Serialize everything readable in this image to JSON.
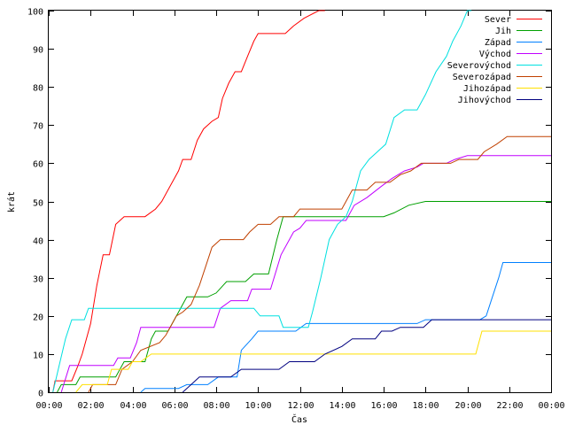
{
  "chart_data": {
    "type": "line",
    "xlabel": "Čas",
    "ylabel": "krát",
    "xlim": [
      0,
      24
    ],
    "ylim": [
      0,
      100
    ],
    "x_ticks": [
      {
        "value": 0,
        "label": "00:00"
      },
      {
        "value": 2,
        "label": "02:00"
      },
      {
        "value": 4,
        "label": "04:00"
      },
      {
        "value": 6,
        "label": "06:00"
      },
      {
        "value": 8,
        "label": "08:00"
      },
      {
        "value": 10,
        "label": "10:00"
      },
      {
        "value": 12,
        "label": "12:00"
      },
      {
        "value": 14,
        "label": "14:00"
      },
      {
        "value": 16,
        "label": "16:00"
      },
      {
        "value": 18,
        "label": "18:00"
      },
      {
        "value": 20,
        "label": "20:00"
      },
      {
        "value": 22,
        "label": "22:00"
      },
      {
        "value": 24,
        "label": "00:00"
      }
    ],
    "y_ticks": [
      0,
      10,
      20,
      30,
      40,
      50,
      60,
      70,
      80,
      90,
      100
    ],
    "legend_position": "top-right",
    "grid": false,
    "series": [
      {
        "name": "Sever",
        "color": "#ff0000",
        "points": [
          [
            0.2,
            0
          ],
          [
            0.3,
            3
          ],
          [
            1.1,
            3
          ],
          [
            1.4,
            7
          ],
          [
            1.6,
            10
          ],
          [
            2.0,
            18
          ],
          [
            2.3,
            28
          ],
          [
            2.6,
            36
          ],
          [
            2.9,
            36
          ],
          [
            3.2,
            44
          ],
          [
            3.6,
            46
          ],
          [
            4.6,
            46
          ],
          [
            5.1,
            48
          ],
          [
            5.4,
            50
          ],
          [
            5.8,
            54
          ],
          [
            6.2,
            58
          ],
          [
            6.4,
            61
          ],
          [
            6.8,
            61
          ],
          [
            7.1,
            66
          ],
          [
            7.4,
            69
          ],
          [
            7.8,
            71
          ],
          [
            8.1,
            72
          ],
          [
            8.3,
            77
          ],
          [
            8.6,
            81
          ],
          [
            8.9,
            84
          ],
          [
            9.2,
            84
          ],
          [
            9.5,
            88
          ],
          [
            9.8,
            92
          ],
          [
            10.0,
            94
          ],
          [
            11.3,
            94
          ],
          [
            11.7,
            96
          ],
          [
            12.2,
            98
          ],
          [
            12.9,
            100
          ],
          [
            13.2,
            100
          ]
        ]
      },
      {
        "name": "Jih",
        "color": "#00a000",
        "points": [
          [
            0.4,
            0
          ],
          [
            0.6,
            2
          ],
          [
            1.3,
            2
          ],
          [
            1.5,
            4
          ],
          [
            3.2,
            4
          ],
          [
            3.6,
            8
          ],
          [
            4.6,
            8
          ],
          [
            4.9,
            14
          ],
          [
            5.1,
            16
          ],
          [
            5.7,
            16
          ],
          [
            6.2,
            21
          ],
          [
            6.6,
            25
          ],
          [
            7.6,
            25
          ],
          [
            8.0,
            26
          ],
          [
            8.5,
            29
          ],
          [
            9.4,
            29
          ],
          [
            9.8,
            31
          ],
          [
            10.5,
            31
          ],
          [
            10.9,
            40
          ],
          [
            11.2,
            46
          ],
          [
            16.0,
            46
          ],
          [
            16.5,
            47
          ],
          [
            17.2,
            49
          ],
          [
            18.0,
            50
          ],
          [
            24.0,
            50
          ]
        ]
      },
      {
        "name": "Západ",
        "color": "#0080ff",
        "points": [
          [
            4.4,
            0
          ],
          [
            4.6,
            1
          ],
          [
            6.2,
            1
          ],
          [
            6.6,
            2
          ],
          [
            7.6,
            2
          ],
          [
            8.1,
            4
          ],
          [
            9.0,
            4
          ],
          [
            9.2,
            11
          ],
          [
            9.7,
            14
          ],
          [
            10.0,
            16
          ],
          [
            11.8,
            16
          ],
          [
            12.3,
            18
          ],
          [
            17.6,
            18
          ],
          [
            18.0,
            19
          ],
          [
            20.6,
            19
          ],
          [
            20.9,
            20
          ],
          [
            21.2,
            25
          ],
          [
            21.5,
            30
          ],
          [
            21.7,
            34
          ],
          [
            24.0,
            34
          ]
        ]
      },
      {
        "name": "Východ",
        "color": "#c000ff",
        "points": [
          [
            0.6,
            0
          ],
          [
            1.0,
            7
          ],
          [
            3.1,
            7
          ],
          [
            3.3,
            9
          ],
          [
            3.9,
            9
          ],
          [
            4.2,
            13
          ],
          [
            4.4,
            17
          ],
          [
            7.9,
            17
          ],
          [
            8.2,
            22
          ],
          [
            8.7,
            24
          ],
          [
            9.5,
            24
          ],
          [
            9.7,
            27
          ],
          [
            10.6,
            27
          ],
          [
            11.1,
            36
          ],
          [
            11.7,
            42
          ],
          [
            12.0,
            43
          ],
          [
            12.3,
            45
          ],
          [
            14.2,
            45
          ],
          [
            14.6,
            49
          ],
          [
            15.2,
            51
          ],
          [
            15.9,
            54
          ],
          [
            16.4,
            56
          ],
          [
            17.0,
            58
          ],
          [
            17.6,
            59
          ],
          [
            17.9,
            60
          ],
          [
            19.0,
            60
          ],
          [
            19.4,
            61
          ],
          [
            20.0,
            62
          ],
          [
            24.0,
            62
          ]
        ]
      },
      {
        "name": "Severovýchod",
        "color": "#00e0e0",
        "points": [
          [
            0.2,
            0
          ],
          [
            0.5,
            7
          ],
          [
            0.8,
            14
          ],
          [
            1.1,
            19
          ],
          [
            1.7,
            19
          ],
          [
            1.9,
            22
          ],
          [
            9.8,
            22
          ],
          [
            10.1,
            20
          ],
          [
            11.0,
            20
          ],
          [
            11.2,
            17
          ],
          [
            12.4,
            17
          ],
          [
            12.6,
            21
          ],
          [
            13.0,
            30
          ],
          [
            13.4,
            40
          ],
          [
            13.8,
            44
          ],
          [
            14.2,
            46
          ],
          [
            14.5,
            50
          ],
          [
            14.9,
            58
          ],
          [
            15.3,
            61
          ],
          [
            15.7,
            63
          ],
          [
            16.1,
            65
          ],
          [
            16.5,
            72
          ],
          [
            17.0,
            74
          ],
          [
            17.6,
            74
          ],
          [
            18.0,
            78
          ],
          [
            18.5,
            84
          ],
          [
            19.0,
            88
          ],
          [
            19.3,
            92
          ],
          [
            19.7,
            96
          ],
          [
            20.0,
            100
          ],
          [
            20.2,
            100
          ]
        ]
      },
      {
        "name": "Severozápad",
        "color": "#c04000",
        "points": [
          [
            1.9,
            0
          ],
          [
            2.1,
            2
          ],
          [
            3.2,
            2
          ],
          [
            3.5,
            6
          ],
          [
            4.0,
            8
          ],
          [
            4.4,
            11
          ],
          [
            5.3,
            13
          ],
          [
            5.6,
            15
          ],
          [
            6.1,
            20
          ],
          [
            6.4,
            21
          ],
          [
            6.8,
            23
          ],
          [
            7.2,
            28
          ],
          [
            7.5,
            33
          ],
          [
            7.8,
            38
          ],
          [
            8.2,
            40
          ],
          [
            9.3,
            40
          ],
          [
            9.6,
            42
          ],
          [
            10.0,
            44
          ],
          [
            10.6,
            44
          ],
          [
            11.0,
            46
          ],
          [
            11.7,
            46
          ],
          [
            12.0,
            48
          ],
          [
            14.0,
            48
          ],
          [
            14.5,
            53
          ],
          [
            15.2,
            53
          ],
          [
            15.6,
            55
          ],
          [
            16.3,
            55
          ],
          [
            16.8,
            57
          ],
          [
            17.3,
            58
          ],
          [
            17.8,
            60
          ],
          [
            19.2,
            60
          ],
          [
            19.6,
            61
          ],
          [
            20.5,
            61
          ],
          [
            20.8,
            63
          ],
          [
            21.4,
            65
          ],
          [
            21.9,
            67
          ],
          [
            24.0,
            67
          ]
        ]
      },
      {
        "name": "Jihozápad",
        "color": "#ffe000",
        "points": [
          [
            1.3,
            0
          ],
          [
            1.6,
            2
          ],
          [
            2.8,
            2
          ],
          [
            3.0,
            6
          ],
          [
            3.8,
            6
          ],
          [
            4.0,
            8
          ],
          [
            4.4,
            8
          ],
          [
            4.9,
            10
          ],
          [
            20.4,
            10
          ],
          [
            20.7,
            16
          ],
          [
            24.0,
            16
          ]
        ]
      },
      {
        "name": "Jihovýchod",
        "color": "#000080",
        "points": [
          [
            6.4,
            0
          ],
          [
            6.8,
            2
          ],
          [
            7.2,
            4
          ],
          [
            8.7,
            4
          ],
          [
            9.2,
            6
          ],
          [
            10.2,
            6
          ],
          [
            11.0,
            6
          ],
          [
            11.5,
            8
          ],
          [
            12.7,
            8
          ],
          [
            13.2,
            10
          ],
          [
            14.0,
            12
          ],
          [
            14.5,
            14
          ],
          [
            15.6,
            14
          ],
          [
            15.9,
            16
          ],
          [
            16.4,
            16
          ],
          [
            16.8,
            17
          ],
          [
            17.9,
            17
          ],
          [
            18.3,
            19
          ],
          [
            24.0,
            19
          ]
        ]
      }
    ]
  }
}
